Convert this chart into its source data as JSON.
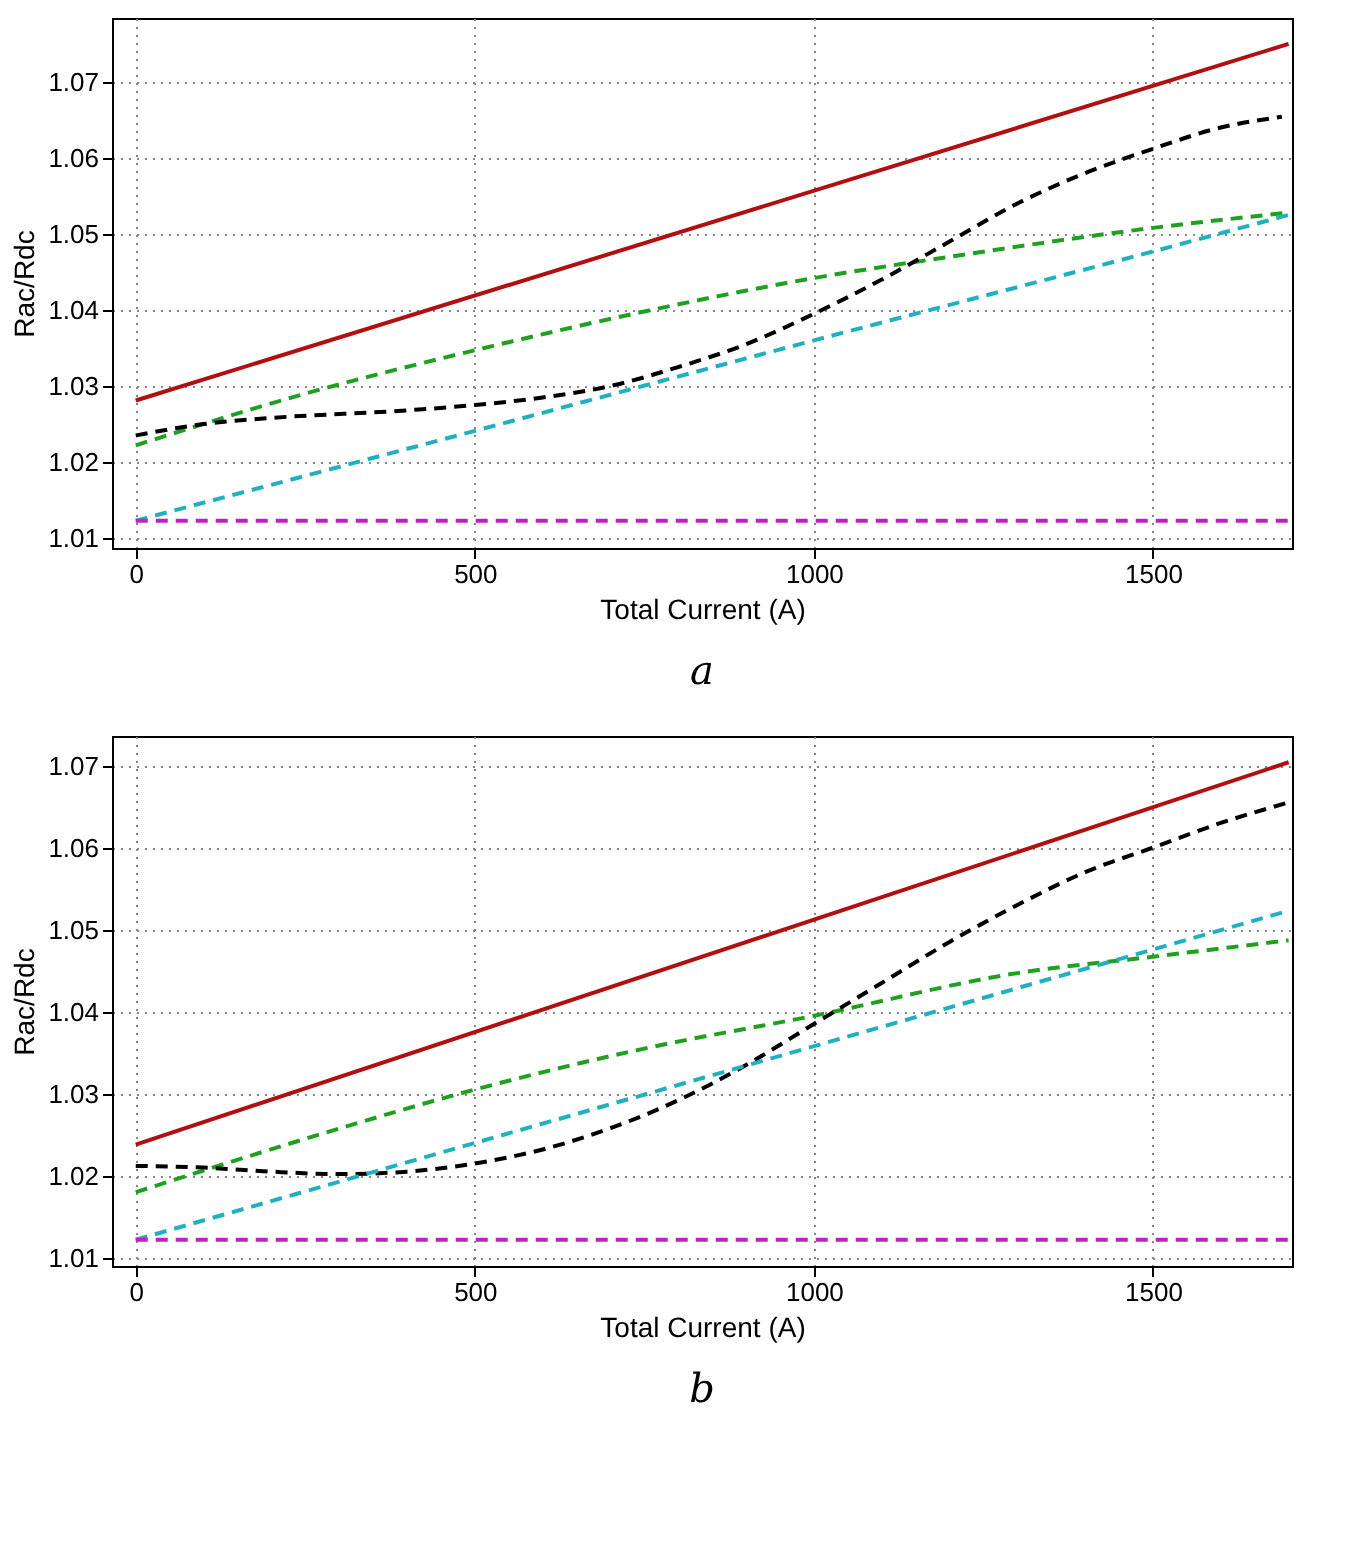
{
  "chart_data": [
    {
      "type": "line",
      "title": "a",
      "xlabel": "Total Current (A)",
      "ylabel": "Rac/Rdc",
      "xlim": [
        -35,
        1705
      ],
      "ylim": [
        1.0087,
        1.0784
      ],
      "xticks": [
        0,
        500,
        1000,
        1500
      ],
      "yticks": [
        1.01,
        1.02,
        1.03,
        1.04,
        1.05,
        1.06,
        1.07
      ],
      "grid": true,
      "marker": "none",
      "series": [
        {
          "color": "#b01010",
          "line_style": "solid",
          "x": [
            0,
            1700
          ],
          "values": [
            1.0281,
            1.075
          ]
        },
        {
          "color": "#20a020",
          "line_style": "dashed",
          "x": [
            0,
            250,
            500,
            750,
            1000,
            1200,
            1500,
            1700
          ],
          "values": [
            1.0222,
            1.029,
            1.0347,
            1.0398,
            1.0442,
            1.047,
            1.0508,
            1.0528
          ]
        },
        {
          "color": "#000000",
          "line_style": "dashed",
          "x": [
            0,
            100,
            200,
            400,
            500,
            600,
            700,
            800,
            900,
            1000,
            1100,
            1200,
            1300,
            1400,
            1500,
            1600,
            1690
          ],
          "values": [
            1.0235,
            1.025,
            1.0258,
            1.0268,
            1.0275,
            1.0285,
            1.03,
            1.0325,
            1.0355,
            1.0395,
            1.044,
            1.049,
            1.054,
            1.058,
            1.0612,
            1.064,
            1.0654
          ]
        },
        {
          "color": "#20b0c0",
          "line_style": "dashed",
          "x": [
            0,
            500,
            1000,
            1500,
            1700
          ],
          "values": [
            1.0123,
            1.0241,
            1.036,
            1.0477,
            1.0525
          ]
        },
        {
          "color": "#c020c0",
          "line_style": "dashed",
          "x": [
            0,
            1700
          ],
          "values": [
            1.0123,
            1.0123
          ]
        }
      ]
    },
    {
      "type": "line",
      "title": "b",
      "xlabel": "Total Current (A)",
      "ylabel": "Rac/Rdc",
      "xlim": [
        -35,
        1705
      ],
      "ylim": [
        1.009,
        1.0736
      ],
      "xticks": [
        0,
        500,
        1000,
        1500
      ],
      "yticks": [
        1.01,
        1.02,
        1.03,
        1.04,
        1.05,
        1.06,
        1.07
      ],
      "grid": true,
      "marker": "none",
      "series": [
        {
          "color": "#b01010",
          "line_style": "solid",
          "x": [
            0,
            1700
          ],
          "values": [
            1.0238,
            1.0704
          ]
        },
        {
          "color": "#20a020",
          "line_style": "dashed",
          "x": [
            0,
            250,
            500,
            750,
            1000,
            1300,
            1500,
            1700
          ],
          "values": [
            1.018,
            1.0245,
            1.0305,
            1.0355,
            1.0395,
            1.0447,
            1.0467,
            1.0487
          ]
        },
        {
          "color": "#000000",
          "line_style": "dashed",
          "x": [
            0,
            100,
            200,
            300,
            400,
            500,
            600,
            700,
            800,
            900,
            1000,
            1100,
            1200,
            1300,
            1400,
            1500,
            1600,
            1700
          ],
          "values": [
            1.0212,
            1.021,
            1.0205,
            1.0202,
            1.0205,
            1.0215,
            1.0232,
            1.0258,
            1.0292,
            1.0335,
            1.0385,
            1.0435,
            1.0485,
            1.053,
            1.057,
            1.06,
            1.063,
            1.0655
          ]
        },
        {
          "color": "#20b0c0",
          "line_style": "dashed",
          "x": [
            0,
            1700
          ],
          "values": [
            1.0122,
            1.0523
          ]
        },
        {
          "color": "#c020c0",
          "line_style": "dashed",
          "x": [
            0,
            1700
          ],
          "values": [
            1.0122,
            1.0122
          ]
        }
      ]
    }
  ]
}
